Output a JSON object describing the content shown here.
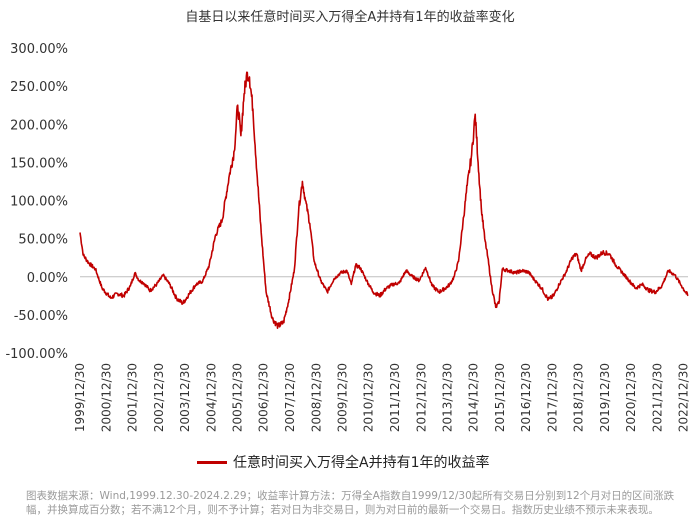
{
  "chart_data": {
    "type": "line",
    "title": "自基日以来任意时间买入万得全A并持有1年的收益率变化",
    "xlabel": "",
    "ylabel": "",
    "ylim": [
      -100,
      300
    ],
    "y_ticks": [
      "300.00%",
      "250.00%",
      "200.00%",
      "150.00%",
      "100.00%",
      "50.00%",
      "0.00%",
      "-50.00%",
      "-100.00%"
    ],
    "x_ticks": [
      "1999/12/30",
      "2000/12/30",
      "2001/12/30",
      "2002/12/30",
      "2003/12/30",
      "2004/12/30",
      "2005/12/30",
      "2006/12/30",
      "2007/12/30",
      "2008/12/30",
      "2009/12/30",
      "2010/12/30",
      "2011/12/30",
      "2012/12/30",
      "2013/12/30",
      "2014/12/30",
      "2015/12/30",
      "2016/12/30",
      "2017/12/30",
      "2018/12/30",
      "2019/12/30",
      "2020/12/30",
      "2021/12/30",
      "2022/12/30"
    ],
    "x_range": [
      "1999-12-30",
      "2023-02-28"
    ],
    "grid": false,
    "legend_position": "bottom",
    "line_color": "#C00000",
    "series": [
      {
        "name": "任意时间买入万得全A并持有1年的收益率",
        "points": [
          [
            "1999-12-30",
            58
          ],
          [
            "2000-02-15",
            28
          ],
          [
            "2000-05-01",
            18
          ],
          [
            "2000-08-01",
            10
          ],
          [
            "2000-11-01",
            -15
          ],
          [
            "2001-03-01",
            -28
          ],
          [
            "2001-06-01",
            -22
          ],
          [
            "2001-09-01",
            -25
          ],
          [
            "2001-12-01",
            -12
          ],
          [
            "2002-02-01",
            5
          ],
          [
            "2002-04-01",
            -5
          ],
          [
            "2002-06-01",
            -8
          ],
          [
            "2002-09-01",
            -18
          ],
          [
            "2002-12-01",
            -10
          ],
          [
            "2003-03-01",
            2
          ],
          [
            "2003-06-01",
            -10
          ],
          [
            "2003-09-01",
            -28
          ],
          [
            "2003-12-01",
            -35
          ],
          [
            "2004-03-01",
            -22
          ],
          [
            "2004-06-01",
            -10
          ],
          [
            "2004-09-01",
            -6
          ],
          [
            "2004-12-01",
            15
          ],
          [
            "2005-03-01",
            55
          ],
          [
            "2005-06-01",
            75
          ],
          [
            "2005-09-01",
            130
          ],
          [
            "2005-11-15",
            165
          ],
          [
            "2006-01-01",
            225
          ],
          [
            "2006-02-15",
            185
          ],
          [
            "2006-04-01",
            240
          ],
          [
            "2006-05-15",
            268
          ],
          [
            "2006-06-15",
            262
          ],
          [
            "2006-08-01",
            220
          ],
          [
            "2006-10-01",
            130
          ],
          [
            "2006-12-01",
            50
          ],
          [
            "2007-02-01",
            -20
          ],
          [
            "2007-05-01",
            -55
          ],
          [
            "2007-07-15",
            -65
          ],
          [
            "2007-10-01",
            -60
          ],
          [
            "2007-12-15",
            -30
          ],
          [
            "2008-03-01",
            10
          ],
          [
            "2008-05-01",
            90
          ],
          [
            "2008-06-20",
            125
          ],
          [
            "2008-08-01",
            100
          ],
          [
            "2008-10-01",
            70
          ],
          [
            "2008-12-01",
            20
          ],
          [
            "2009-03-01",
            -5
          ],
          [
            "2009-06-01",
            -20
          ],
          [
            "2009-09-01",
            -3
          ],
          [
            "2009-12-01",
            5
          ],
          [
            "2010-03-01",
            8
          ],
          [
            "2010-05-01",
            -10
          ],
          [
            "2010-07-01",
            15
          ],
          [
            "2010-09-01",
            12
          ],
          [
            "2010-12-01",
            -5
          ],
          [
            "2011-03-01",
            -20
          ],
          [
            "2011-06-01",
            -25
          ],
          [
            "2011-09-01",
            -15
          ],
          [
            "2011-12-01",
            -10
          ],
          [
            "2012-03-01",
            -8
          ],
          [
            "2012-06-01",
            8
          ],
          [
            "2012-09-01",
            0
          ],
          [
            "2012-12-01",
            -5
          ],
          [
            "2013-03-01",
            12
          ],
          [
            "2013-06-01",
            -12
          ],
          [
            "2013-09-01",
            -20
          ],
          [
            "2013-12-01",
            -15
          ],
          [
            "2014-02-01",
            -10
          ],
          [
            "2014-04-01",
            0
          ],
          [
            "2014-06-01",
            20
          ],
          [
            "2014-08-01",
            70
          ],
          [
            "2014-10-01",
            120
          ],
          [
            "2014-12-01",
            160
          ],
          [
            "2015-01-20",
            213
          ],
          [
            "2015-03-01",
            150
          ],
          [
            "2015-04-15",
            90
          ],
          [
            "2015-06-01",
            50
          ],
          [
            "2015-07-15",
            25
          ],
          [
            "2015-09-01",
            -10
          ],
          [
            "2015-11-01",
            -40
          ],
          [
            "2015-12-15",
            -35
          ],
          [
            "2016-02-01",
            10
          ],
          [
            "2016-05-01",
            8
          ],
          [
            "2016-08-01",
            5
          ],
          [
            "2016-11-01",
            8
          ],
          [
            "2017-02-01",
            6
          ],
          [
            "2017-05-01",
            -5
          ],
          [
            "2017-08-01",
            -15
          ],
          [
            "2017-11-01",
            -30
          ],
          [
            "2018-01-15",
            -25
          ],
          [
            "2018-04-01",
            -10
          ],
          [
            "2018-07-01",
            5
          ],
          [
            "2018-10-01",
            25
          ],
          [
            "2018-12-01",
            30
          ],
          [
            "2019-02-01",
            8
          ],
          [
            "2019-04-01",
            22
          ],
          [
            "2019-06-01",
            30
          ],
          [
            "2019-09-01",
            25
          ],
          [
            "2019-12-01",
            32
          ],
          [
            "2020-03-01",
            30
          ],
          [
            "2020-06-01",
            15
          ],
          [
            "2020-09-01",
            5
          ],
          [
            "2020-12-01",
            -5
          ],
          [
            "2021-03-01",
            -15
          ],
          [
            "2021-06-01",
            -10
          ],
          [
            "2021-09-01",
            -18
          ],
          [
            "2021-12-01",
            -20
          ],
          [
            "2022-03-01",
            -12
          ],
          [
            "2022-06-01",
            8
          ],
          [
            "2022-09-01",
            2
          ],
          [
            "2022-12-01",
            -12
          ],
          [
            "2023-02-28",
            -25
          ]
        ]
      }
    ]
  },
  "footnote": "图表数据来源：Wind,1999.12.30-2024.2.29；收益率计算方法：万得全A指数自1999/12/30起所有交易日分别到12个月对日的区间涨跌幅，并换算成百分数；若不满12个月，则不予计算；若对日为非交易日，则为对日前的最新一个交易日。指数历史业绩不预示未来表现。"
}
